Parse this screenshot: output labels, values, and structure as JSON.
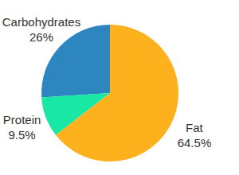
{
  "chart_data": {
    "type": "pie",
    "categories": [
      "Carbohydrates",
      "Protein",
      "Fat"
    ],
    "values": [
      26,
      9.5,
      64.5
    ],
    "value_labels": [
      "26%",
      "9.5%",
      "64.5%"
    ],
    "colors": [
      "#2e86c1",
      "#19e8a5",
      "#fdb11c"
    ]
  }
}
